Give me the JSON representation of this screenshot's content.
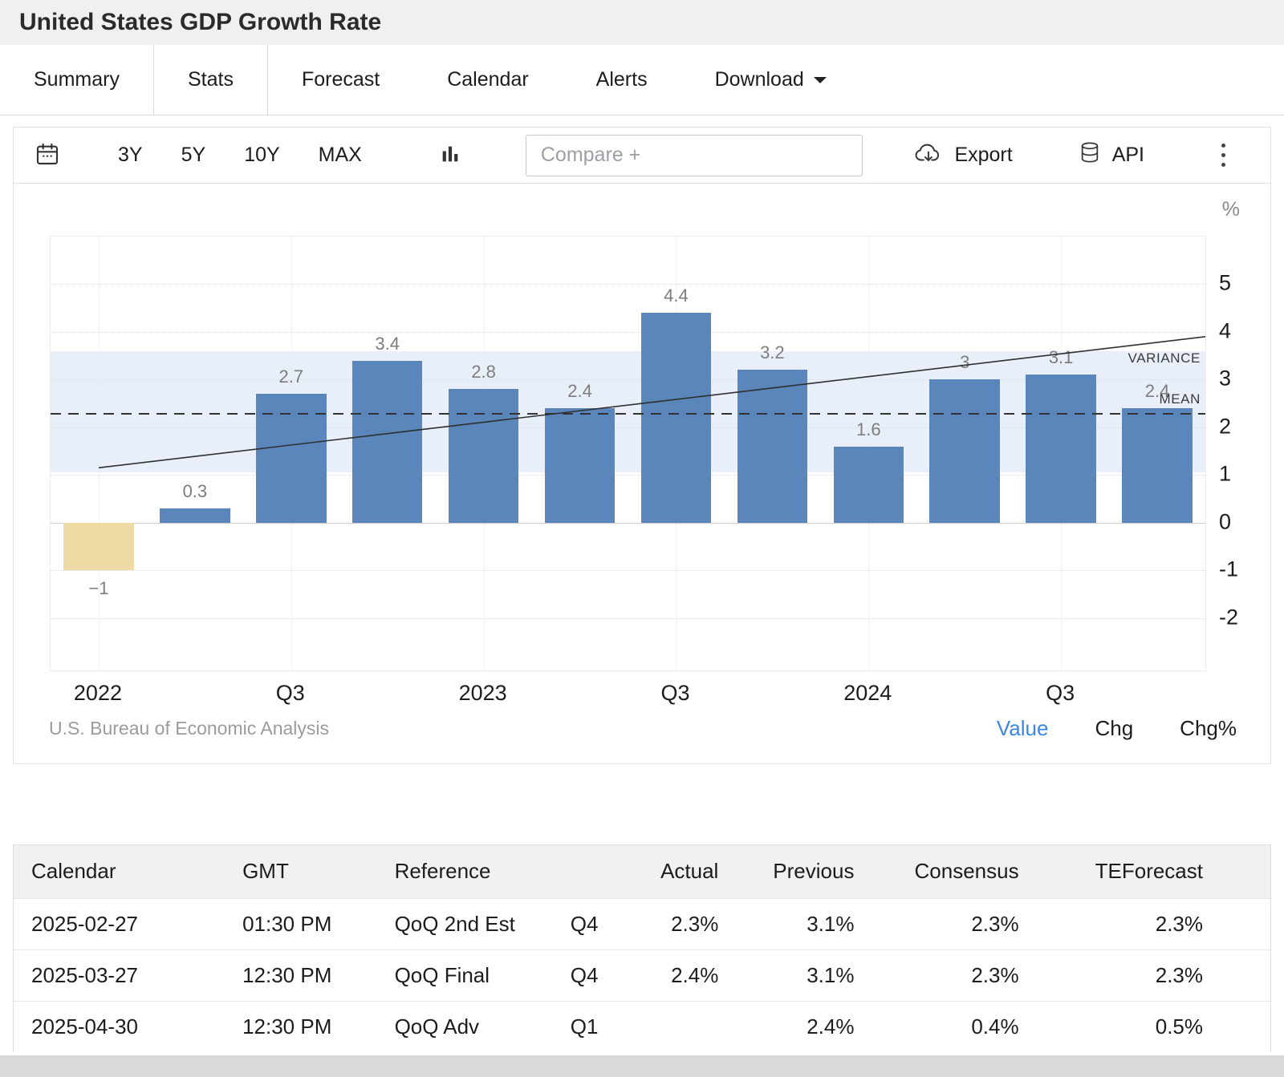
{
  "page": {
    "title": "United States GDP Growth Rate"
  },
  "tabs": [
    {
      "label": "Summary",
      "active": false
    },
    {
      "label": "Stats",
      "active": true
    },
    {
      "label": "Forecast",
      "active": false
    },
    {
      "label": "Calendar",
      "active": false
    },
    {
      "label": "Alerts",
      "active": false
    },
    {
      "label": "Download",
      "active": false,
      "caret": true
    }
  ],
  "toolbar": {
    "ranges": [
      "3Y",
      "5Y",
      "10Y",
      "MAX"
    ],
    "compare_placeholder": "Compare +",
    "export_label": "Export",
    "api_label": "API"
  },
  "chart_data": {
    "type": "bar",
    "title": "United States GDP Growth Rate",
    "unit": "%",
    "values": [
      -1,
      0.3,
      2.7,
      3.4,
      2.8,
      2.4,
      4.4,
      3.2,
      1.6,
      3,
      3.1,
      2.4
    ],
    "bar_labels": [
      "−1",
      "0.3",
      "2.7",
      "3.4",
      "2.8",
      "2.4",
      "4.4",
      "3.2",
      "1.6",
      "3",
      "3.1",
      "2.4"
    ],
    "x_labels": [
      {
        "label": "2022",
        "bar_index": 0
      },
      {
        "label": "Q3",
        "bar_index": 2
      },
      {
        "label": "2023",
        "bar_index": 4
      },
      {
        "label": "Q3",
        "bar_index": 6
      },
      {
        "label": "2024",
        "bar_index": 8
      },
      {
        "label": "Q3",
        "bar_index": 10
      }
    ],
    "y_ticks": [
      5,
      4,
      3,
      2,
      1,
      0,
      -1,
      -2
    ],
    "ylim": [
      -3.1,
      6.0
    ],
    "positive_color": "#5b86bb",
    "negative_color": "#eedaa4",
    "variance_band": {
      "from": 1.05,
      "to": 3.6,
      "color": "#e9eff9"
    },
    "mean_line": {
      "value": 2.3
    },
    "trend_line": {
      "start_value": 1.15,
      "end_value": 3.9
    },
    "annotations": [
      {
        "label": "VARIANCE",
        "y": 3.45
      },
      {
        "label": "MEAN",
        "y": 2.58
      }
    ],
    "source": "U.S. Bureau of Economic Analysis"
  },
  "modes": [
    {
      "label": "Value",
      "active": true
    },
    {
      "label": "Chg",
      "active": false
    },
    {
      "label": "Chg%",
      "active": false
    }
  ],
  "table": {
    "headers": [
      "Calendar",
      "GMT",
      "Reference",
      "",
      "Actual",
      "Previous",
      "Consensus",
      "TEForecast"
    ],
    "rows": [
      [
        "2025-02-27",
        "01:30 PM",
        "QoQ 2nd Est",
        "Q4",
        "2.3%",
        "3.1%",
        "2.3%",
        "2.3%"
      ],
      [
        "2025-03-27",
        "12:30 PM",
        "QoQ Final",
        "Q4",
        "2.4%",
        "3.1%",
        "2.3%",
        "2.3%"
      ],
      [
        "2025-04-30",
        "12:30 PM",
        "QoQ Adv",
        "Q1",
        "",
        "2.4%",
        "0.4%",
        "0.5%"
      ]
    ]
  }
}
